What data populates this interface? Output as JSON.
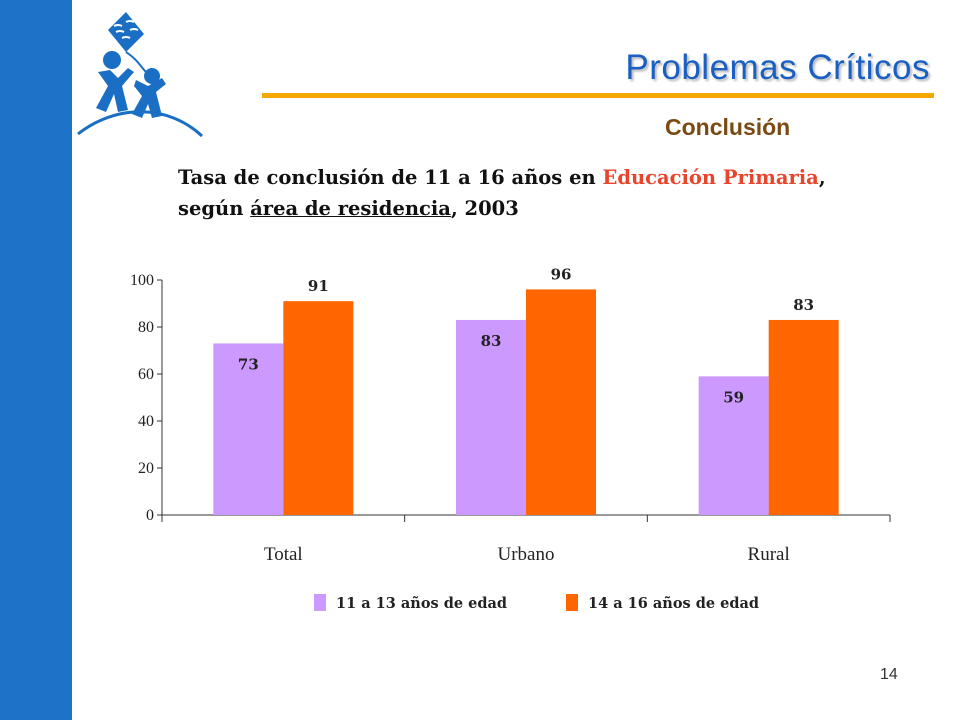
{
  "slide": {
    "title": "Problemas Críticos",
    "subtitle": "Conclusión",
    "heading": {
      "part1": "Tasa de conclusión de 11 a 16 años en ",
      "highlight": "Educación Primaria",
      "part2": ",",
      "part3": "según ",
      "underlined": "área de residencia",
      "part4": ", 2003"
    },
    "page_number": "14"
  },
  "colors": {
    "sidebar": "#1e73c8",
    "title": "#1a5fc2",
    "rule": "#f5a800",
    "subtitle": "#7a4a12",
    "highlight": "#e8452c",
    "series_1": "#cc99ff",
    "series_2": "#ff6600"
  },
  "chart_data": {
    "type": "bar",
    "categories": [
      "Total",
      "Urbano",
      "Rural"
    ],
    "series": [
      {
        "name": "11 a 13 años de edad",
        "values": [
          73,
          83,
          59
        ],
        "color": "#cc99ff"
      },
      {
        "name": "14 a 16 años de edad",
        "values": [
          91,
          96,
          83
        ],
        "color": "#ff6600"
      }
    ],
    "ylim": [
      0,
      100
    ],
    "yticks": [
      0,
      20,
      40,
      60,
      80,
      100
    ],
    "grid": false,
    "legend_position": "bottom"
  }
}
